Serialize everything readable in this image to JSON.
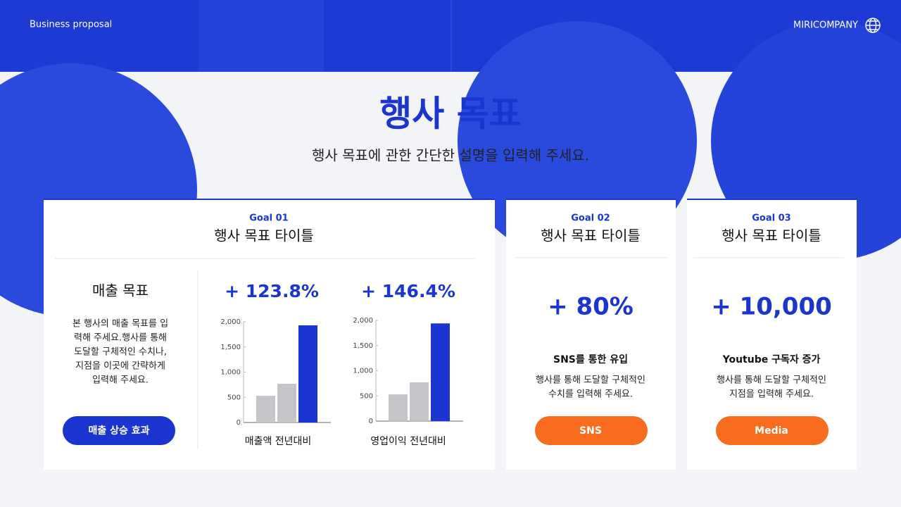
{
  "header": {
    "left": "Business proposal",
    "right": "MIRICOMPANY"
  },
  "title": "행사 목표",
  "subtitle": "행사 목표에 관한 간단한 설명을 입력해 주세요.",
  "cards": [
    {
      "goal": "Goal 01",
      "title": "행사 목표 타이틀",
      "heading": "매출 목표",
      "description": [
        "본 행사의 매출 목표를 입",
        "력해 주세요.행사를 통해",
        "도달할 구체적인 수치나,",
        "지점을 이곳에 간략하게",
        "입력해 주세요."
      ],
      "button": "매출 상승 효과"
    },
    {
      "goal": "Goal 02",
      "title": "행사 목표 타이틀",
      "value": "+ 80%",
      "heading": "SNS를 통한 유입",
      "description": [
        "행사를 통해 도달할 구체적인",
        "수치를 입력해 주세요."
      ],
      "button": "SNS"
    },
    {
      "goal": "Goal 03",
      "title": "행사 목표 타이틀",
      "value": "+ 10,000",
      "heading": "Youtube 구독자 증가",
      "description": [
        "행사를 통해 도달할 구체적인",
        "지점을 입력해 주세요."
      ],
      "button": "Media"
    }
  ],
  "chart_data": [
    {
      "type": "bar",
      "title": "+ 123.8%",
      "xlabel": "매출액 전년대비",
      "categories": [
        null,
        null,
        null
      ],
      "values": [
        530,
        770,
        1930
      ],
      "colors": [
        "#c4c4c9",
        "#c4c4c9",
        "#1a35d0"
      ],
      "ylim": [
        0,
        2000
      ],
      "yticks": [
        0,
        500,
        {
          "value": 1000,
          "label": "1,000"
        },
        {
          "value": 1500,
          "label": "1,500"
        },
        {
          "value": 2000,
          "label": "2,000"
        }
      ]
    },
    {
      "type": "bar",
      "title": "+ 146.4%",
      "xlabel": "영업이익 전년대비",
      "categories": [
        null,
        null,
        null
      ],
      "values": [
        530,
        770,
        1940
      ],
      "colors": [
        "#c4c4c9",
        "#c4c4c9",
        "#1a35d0"
      ],
      "ylim": [
        0,
        2000
      ],
      "yticks": [
        0,
        500,
        {
          "value": 1000,
          "label": "1,000"
        },
        {
          "value": 1500,
          "label": "1,500"
        },
        {
          "value": 2000,
          "label": "2,000"
        }
      ]
    }
  ]
}
